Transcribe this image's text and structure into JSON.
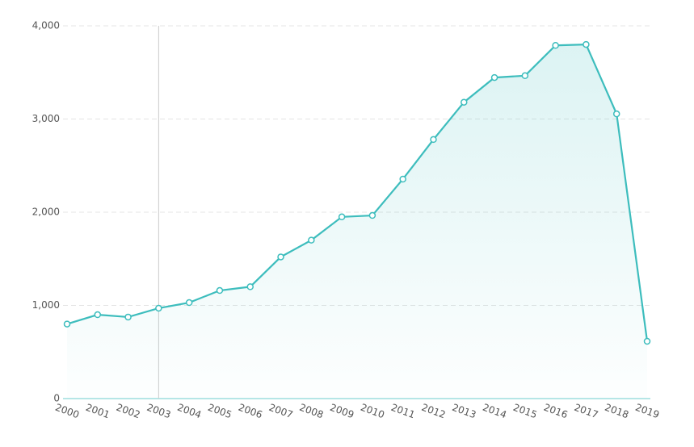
{
  "chart_data": {
    "type": "area",
    "categories": [
      "2000",
      "2001",
      "2002",
      "2003",
      "2004",
      "2005",
      "2006",
      "2007",
      "2008",
      "2009",
      "2010",
      "2011",
      "2012",
      "2013",
      "2014",
      "2015",
      "2016",
      "2017",
      "2018",
      "2019"
    ],
    "series": [
      {
        "color": "#3dbdbd",
        "values": [
          800,
          900,
          875,
          970,
          1030,
          1160,
          1200,
          1520,
          1700,
          1950,
          1965,
          2355,
          2780,
          3180,
          3445,
          3465,
          3790,
          3800,
          3055,
          615
        ]
      }
    ],
    "ylim": [
      0,
      4000
    ],
    "yticks": [
      0,
      {
        "value": 1000,
        "label": "1,000"
      },
      {
        "value": 2000,
        "label": "2,000"
      },
      {
        "value": 3000,
        "label": "3,000"
      },
      {
        "value": 4000,
        "label": "4,000"
      }
    ],
    "grid": true
  }
}
